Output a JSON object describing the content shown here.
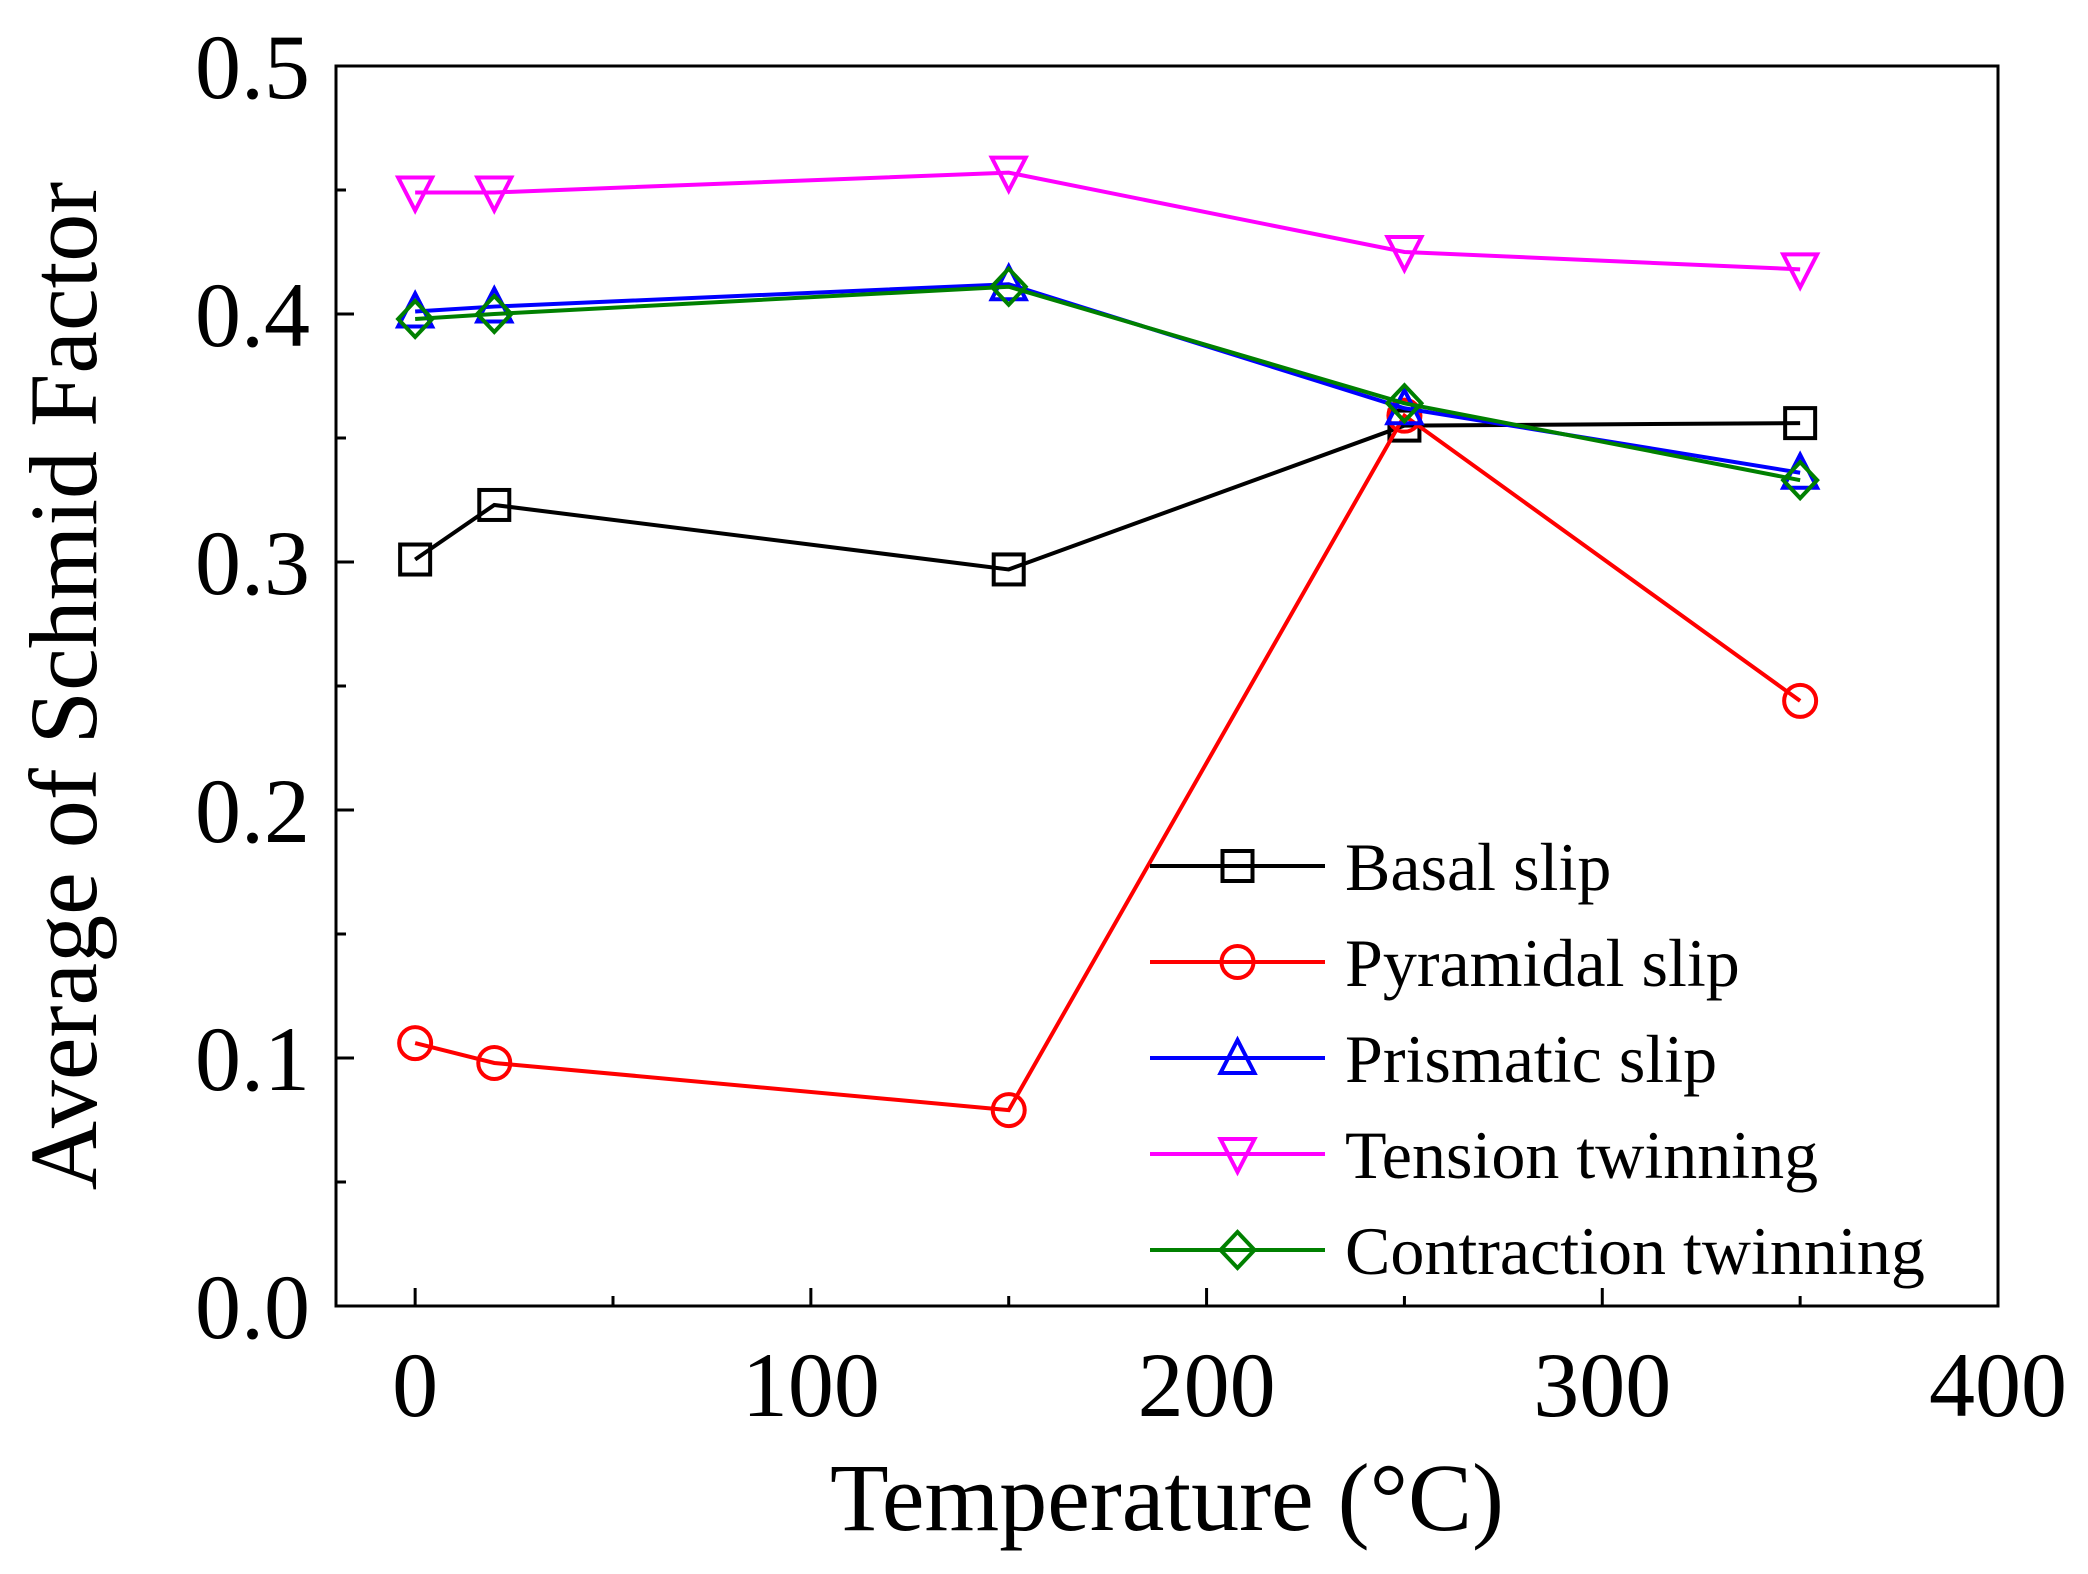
{
  "chart_data": {
    "type": "line",
    "title": "",
    "xlabel": "Temperature (°C)",
    "ylabel": "Average of Schmid Factor",
    "xlim": [
      -20,
      400
    ],
    "ylim": [
      0.0,
      0.5
    ],
    "x_ticks": [
      0,
      100,
      200,
      300,
      400
    ],
    "x_tick_labels": [
      "0",
      "100",
      "200",
      "300",
      "400"
    ],
    "y_ticks": [
      0.0,
      0.1,
      0.2,
      0.3,
      0.4,
      0.5
    ],
    "y_tick_labels": [
      "0.0",
      "0.1",
      "0.2",
      "0.3",
      "0.4",
      "0.5"
    ],
    "grid": false,
    "legend_position": "bottom-right",
    "x": [
      0,
      20,
      150,
      250,
      350
    ],
    "series": [
      {
        "name": "Basal slip",
        "values": [
          0.301,
          0.323,
          0.297,
          0.355,
          0.356
        ],
        "color": "#000000",
        "marker": "square"
      },
      {
        "name": "Pyramidal slip",
        "values": [
          0.106,
          0.098,
          0.079,
          0.359,
          0.244
        ],
        "color": "#ff0000",
        "marker": "circle"
      },
      {
        "name": "Prismatic slip",
        "values": [
          0.401,
          0.403,
          0.412,
          0.362,
          0.336
        ],
        "color": "#0000ff",
        "marker": "triangle-up"
      },
      {
        "name": "Tension twinning",
        "values": [
          0.449,
          0.449,
          0.457,
          0.425,
          0.418
        ],
        "color": "#ff00ff",
        "marker": "triangle-down"
      },
      {
        "name": "Contraction twinning",
        "values": [
          0.398,
          0.4,
          0.411,
          0.364,
          0.333
        ],
        "color": "#008000",
        "marker": "diamond"
      }
    ]
  }
}
